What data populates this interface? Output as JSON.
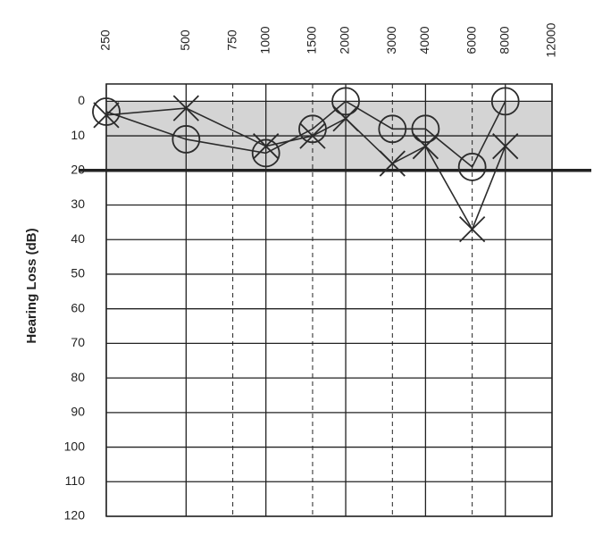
{
  "chart_data": {
    "type": "line",
    "ylabel": "Hearing Loss (dB)",
    "x": [
      250,
      500,
      1000,
      1500,
      2000,
      3000,
      4000,
      6000,
      8000
    ],
    "xlim": [
      250,
      12000
    ],
    "xscale": "log",
    "xticks": [
      250,
      500,
      750,
      1000,
      1500,
      2000,
      3000,
      4000,
      6000,
      8000,
      12000
    ],
    "ylim": [
      -5,
      120
    ],
    "y_inverted": true,
    "yticks": [
      0,
      10,
      20,
      30,
      40,
      50,
      60,
      70,
      80,
      90,
      100,
      110,
      120
    ],
    "grid": true,
    "shaded_range": [
      0,
      20
    ],
    "shade_color": "#d4d4d4",
    "reference_line": 20,
    "series": [
      {
        "marker": "o",
        "color": "#2b2b2b",
        "values": [
          3,
          11,
          15,
          8,
          0,
          8,
          8,
          19,
          0
        ]
      },
      {
        "marker": "x",
        "color": "#2b2b2b",
        "values": [
          4,
          2,
          13,
          10,
          5,
          18,
          13,
          37,
          13
        ]
      }
    ]
  }
}
